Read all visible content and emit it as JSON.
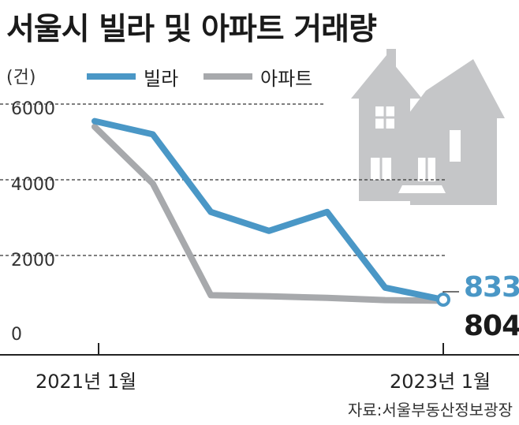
{
  "header": {
    "title": "서울시 빌라 및 아파트 거래량"
  },
  "footer": {
    "source": "자료:서울부동산정보광장"
  },
  "chart_data": {
    "type": "line",
    "title": "서울시 빌라 및 아파트 거래량",
    "unit_label": "(건)",
    "x": [
      "2021-01",
      "2021-05",
      "2021-09",
      "2022-01",
      "2022-05",
      "2022-09",
      "2023-01"
    ],
    "x_tick_labels": [
      "2021년 1월",
      "2023년 1월"
    ],
    "y_ticks": [
      0,
      2000,
      4000,
      6000
    ],
    "y_tick_labels": [
      "0",
      "2000",
      "4000",
      "6000"
    ],
    "ylim": [
      0,
      6300
    ],
    "grid": "dashed",
    "legend_position": "top",
    "series": [
      {
        "name": "빌라",
        "color": "#4a97c6",
        "values": [
          5550,
          5200,
          3150,
          2650,
          3150,
          1150,
          833
        ]
      },
      {
        "name": "아파트",
        "color": "#a7a9ac",
        "values": [
          5400,
          3900,
          950,
          920,
          880,
          820,
          804
        ]
      }
    ],
    "end_labels": [
      {
        "series": "빌라",
        "text": "833",
        "color": "#4a97c6"
      },
      {
        "series": "아파트",
        "text": "804",
        "color": "#1a1a1a"
      }
    ]
  }
}
